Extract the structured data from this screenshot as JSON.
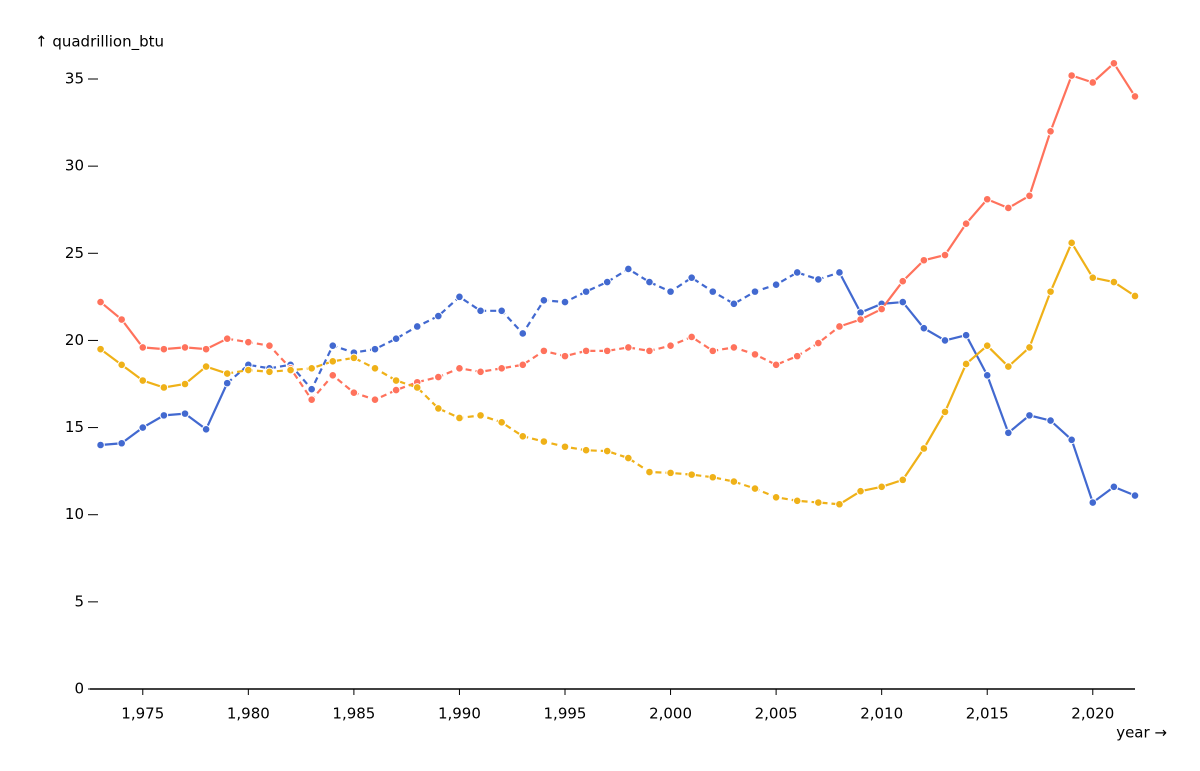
{
  "chart_data": {
    "type": "line",
    "y_label": "↑ quadrillion_btu",
    "x_label": "year →",
    "x": [
      1973,
      1974,
      1975,
      1976,
      1977,
      1978,
      1979,
      1980,
      1981,
      1982,
      1983,
      1984,
      1985,
      1986,
      1987,
      1988,
      1989,
      1990,
      1991,
      1992,
      1993,
      1994,
      1995,
      1996,
      1997,
      1998,
      1999,
      2000,
      2001,
      2002,
      2003,
      2004,
      2005,
      2006,
      2007,
      2008,
      2009,
      2010,
      2011,
      2012,
      2013,
      2014,
      2015,
      2016,
      2017,
      2018,
      2019,
      2020,
      2021,
      2022
    ],
    "series": [
      {
        "color": "#4269d0",
        "values": [
          14.0,
          14.1,
          15.0,
          15.7,
          15.8,
          14.9,
          17.55,
          18.6,
          18.4,
          18.6,
          17.2,
          19.7,
          19.3,
          19.5,
          20.1,
          20.8,
          21.4,
          22.5,
          21.7,
          21.7,
          20.4,
          22.3,
          22.2,
          22.8,
          23.35,
          24.1,
          23.35,
          22.8,
          23.6,
          22.8,
          22.1,
          22.8,
          23.2,
          23.9,
          23.5,
          23.9,
          21.6,
          22.1,
          22.2,
          20.7,
          20.0,
          20.3,
          18.0,
          14.7,
          15.7,
          15.4,
          14.3,
          10.7,
          11.6,
          11.1
        ]
      },
      {
        "color": "#ff725c",
        "values": [
          22.2,
          21.2,
          19.6,
          19.5,
          19.6,
          19.5,
          20.1,
          19.9,
          19.7,
          18.4,
          16.6,
          18.0,
          17.0,
          16.6,
          17.15,
          17.6,
          17.9,
          18.4,
          18.2,
          18.4,
          18.6,
          19.4,
          19.1,
          19.4,
          19.4,
          19.6,
          19.4,
          19.7,
          20.2,
          19.4,
          19.6,
          19.2,
          18.6,
          19.1,
          19.85,
          20.8,
          21.2,
          21.8,
          23.4,
          24.6,
          24.9,
          26.7,
          28.1,
          27.6,
          28.3,
          32.0,
          35.2,
          34.8,
          35.9,
          34.0
        ]
      },
      {
        "color": "#efb118",
        "values": [
          19.5,
          18.6,
          17.7,
          17.3,
          17.5,
          18.5,
          18.1,
          18.3,
          18.2,
          18.3,
          18.4,
          18.8,
          19.0,
          18.4,
          17.7,
          17.3,
          16.1,
          15.55,
          15.7,
          15.3,
          14.5,
          14.2,
          13.9,
          13.7,
          13.65,
          13.25,
          12.45,
          12.4,
          12.3,
          12.15,
          11.9,
          11.5,
          11.0,
          10.8,
          10.7,
          10.6,
          11.35,
          11.6,
          12.0,
          13.8,
          15.9,
          18.65,
          19.7,
          18.5,
          19.6,
          22.8,
          25.6,
          23.6,
          23.35,
          22.55
        ]
      }
    ],
    "dash_range": [
      1979,
      2008
    ],
    "xlim": [
      1972.5,
      2022
    ],
    "xticks": [
      {
        "value": 1975,
        "label": "1,975"
      },
      {
        "value": 1980,
        "label": "1,980"
      },
      {
        "value": 1985,
        "label": "1,985"
      },
      {
        "value": 1990,
        "label": "1,990"
      },
      {
        "value": 1995,
        "label": "1,995"
      },
      {
        "value": 2000,
        "label": "2,000"
      },
      {
        "value": 2005,
        "label": "2,005"
      },
      {
        "value": 2010,
        "label": "2,010"
      },
      {
        "value": 2015,
        "label": "2,015"
      },
      {
        "value": 2020,
        "label": "2,020"
      }
    ],
    "ylim": [
      0,
      35
    ],
    "yticks": [
      0,
      5,
      10,
      15,
      20,
      25,
      30,
      35
    ],
    "grid": false
  }
}
